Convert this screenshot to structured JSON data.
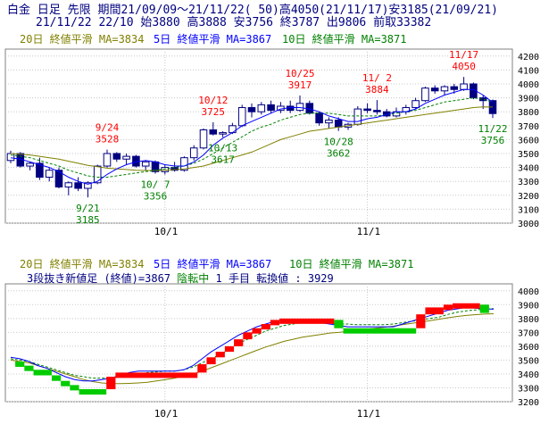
{
  "header": {
    "line1": "白金 日足 先限 期間21/09/09～21/11/22( 50)高4050(21/11/17)安3185(21/09/21)",
    "line2": "21/11/22 22/10 始3880 高3888 安3756 終3787 出9806 前取33382"
  },
  "colors": {
    "ma20": "#808000",
    "ma5": "#0000ff",
    "ma10": "#008000",
    "candle_down": "#000080",
    "candle_up_edge": "#000080",
    "high_label": "#ff0000",
    "low_label": "#008000",
    "brick_up": "#ff0000",
    "brick_down": "#00cc00",
    "grid": "#c8c8c8"
  },
  "chart_data": [
    {
      "type": "candlestick",
      "legend": {
        "ma20": "20日 終値平滑 MA=3834",
        "ma5": "5日 終値平滑 MA=3867",
        "ma10": "10日 終値平滑 MA=3871"
      },
      "ylim": [
        3000,
        4250
      ],
      "yticks": [
        3000,
        3100,
        3200,
        3300,
        3400,
        3500,
        3600,
        3700,
        3800,
        3900,
        4000,
        4100,
        4200
      ],
      "xtick_labels": [
        {
          "label": "10/1",
          "index": 16
        },
        {
          "label": "11/1",
          "index": 37
        }
      ],
      "ohlc": [
        [
          3450,
          3520,
          3430,
          3500
        ],
        [
          3500,
          3510,
          3400,
          3410
        ],
        [
          3410,
          3440,
          3380,
          3430
        ],
        [
          3430,
          3470,
          3310,
          3330
        ],
        [
          3330,
          3400,
          3300,
          3380
        ],
        [
          3380,
          3400,
          3250,
          3260
        ],
        [
          3260,
          3300,
          3200,
          3290
        ],
        [
          3290,
          3330,
          3230,
          3250
        ],
        [
          3250,
          3300,
          3185,
          3290
        ],
        [
          3290,
          3420,
          3280,
          3410
        ],
        [
          3410,
          3528,
          3400,
          3500
        ],
        [
          3500,
          3510,
          3440,
          3460
        ],
        [
          3460,
          3500,
          3420,
          3480
        ],
        [
          3480,
          3490,
          3400,
          3410
        ],
        [
          3410,
          3450,
          3380,
          3440
        ],
        [
          3440,
          3450,
          3356,
          3370
        ],
        [
          3370,
          3420,
          3350,
          3400
        ],
        [
          3400,
          3440,
          3370,
          3380
        ],
        [
          3380,
          3480,
          3370,
          3470
        ],
        [
          3470,
          3560,
          3450,
          3540
        ],
        [
          3540,
          3680,
          3530,
          3670
        ],
        [
          3670,
          3725,
          3630,
          3640
        ],
        [
          3640,
          3660,
          3617,
          3650
        ],
        [
          3650,
          3720,
          3640,
          3700
        ],
        [
          3700,
          3850,
          3690,
          3830
        ],
        [
          3830,
          3860,
          3760,
          3800
        ],
        [
          3800,
          3870,
          3780,
          3850
        ],
        [
          3850,
          3880,
          3790,
          3810
        ],
        [
          3810,
          3870,
          3790,
          3840
        ],
        [
          3840,
          3880,
          3790,
          3810
        ],
        [
          3810,
          3917,
          3800,
          3860
        ],
        [
          3860,
          3880,
          3780,
          3790
        ],
        [
          3790,
          3800,
          3700,
          3720
        ],
        [
          3720,
          3760,
          3680,
          3740
        ],
        [
          3740,
          3760,
          3662,
          3690
        ],
        [
          3690,
          3720,
          3670,
          3710
        ],
        [
          3710,
          3840,
          3700,
          3820
        ],
        [
          3820,
          3860,
          3790,
          3810
        ],
        [
          3810,
          3884,
          3780,
          3800
        ],
        [
          3800,
          3820,
          3760,
          3770
        ],
        [
          3770,
          3830,
          3760,
          3800
        ],
        [
          3800,
          3850,
          3780,
          3830
        ],
        [
          3830,
          3900,
          3820,
          3880
        ],
        [
          3880,
          3980,
          3870,
          3970
        ],
        [
          3970,
          3990,
          3930,
          3950
        ],
        [
          3950,
          3990,
          3920,
          3980
        ],
        [
          3980,
          4000,
          3930,
          3960
        ],
        [
          3960,
          4050,
          3950,
          4000
        ],
        [
          4000,
          4010,
          3890,
          3900
        ],
        [
          3900,
          3920,
          3820,
          3880
        ],
        [
          3880,
          3888,
          3756,
          3787
        ]
      ],
      "ma5": [
        3470,
        3460,
        3440,
        3420,
        3400,
        3370,
        3330,
        3300,
        3280,
        3300,
        3350,
        3390,
        3420,
        3440,
        3450,
        3440,
        3420,
        3410,
        3410,
        3440,
        3490,
        3560,
        3610,
        3650,
        3700,
        3730,
        3760,
        3790,
        3820,
        3830,
        3830,
        3820,
        3800,
        3770,
        3750,
        3730,
        3730,
        3750,
        3760,
        3780,
        3800,
        3800,
        3820,
        3860,
        3890,
        3920,
        3940,
        3960,
        3960,
        3920,
        3867
      ],
      "ma10": [
        3490,
        3480,
        3470,
        3450,
        3430,
        3410,
        3380,
        3360,
        3340,
        3330,
        3330,
        3340,
        3350,
        3360,
        3370,
        3380,
        3390,
        3400,
        3410,
        3430,
        3460,
        3500,
        3540,
        3580,
        3620,
        3660,
        3690,
        3710,
        3740,
        3760,
        3780,
        3790,
        3790,
        3790,
        3780,
        3770,
        3770,
        3770,
        3770,
        3780,
        3790,
        3800,
        3810,
        3830,
        3850,
        3870,
        3880,
        3890,
        3900,
        3890,
        3871
      ],
      "ma20": [
        3500,
        3495,
        3490,
        3480,
        3470,
        3460,
        3445,
        3430,
        3415,
        3405,
        3395,
        3390,
        3385,
        3380,
        3378,
        3378,
        3380,
        3385,
        3390,
        3400,
        3410,
        3430,
        3450,
        3470,
        3490,
        3510,
        3540,
        3570,
        3600,
        3620,
        3640,
        3660,
        3670,
        3680,
        3690,
        3700,
        3710,
        3720,
        3730,
        3740,
        3750,
        3760,
        3770,
        3780,
        3790,
        3800,
        3810,
        3820,
        3830,
        3835,
        3834
      ],
      "high_annotations": [
        {
          "date": "9/24",
          "value": "3528",
          "index": 10
        },
        {
          "date": "10/12",
          "value": "3725",
          "index": 21
        },
        {
          "date": "10/25",
          "value": "3917",
          "index": 30
        },
        {
          "date": "11/ 2",
          "value": "3884",
          "index": 38
        },
        {
          "date": "11/17",
          "value": "4050",
          "index": 47
        }
      ],
      "low_annotations": [
        {
          "date": "9/21",
          "value": "3185",
          "index": 8
        },
        {
          "date": "10/ 7",
          "value": "3356",
          "index": 15
        },
        {
          "date": "10/13",
          "value": "3617",
          "index": 22
        },
        {
          "date": "10/28",
          "value": "3662",
          "index": 34
        },
        {
          "date": "11/22",
          "value": "3756",
          "index": 50
        }
      ]
    },
    {
      "type": "three-line-break",
      "legend": {
        "ma20": "20日 終値平滑 MA=3834",
        "ma5": "5日 終値平滑 MA=3867",
        "ma10": "10日 終値平滑 MA=3871"
      },
      "info_prefix": "3段抜き新値足 (終値)=3867 ",
      "info_state": "陰転中",
      "info_suffix": "  1 手目 転換値 : 3929",
      "ylim": [
        3200,
        4050
      ],
      "yticks": [
        3200,
        3300,
        3400,
        3500,
        3600,
        3700,
        3800,
        3900,
        4000
      ],
      "bricks": [
        {
          "start": 1,
          "end": 2,
          "low": 3460,
          "high": 3490,
          "dir": "down"
        },
        {
          "start": 2,
          "end": 3,
          "low": 3430,
          "high": 3460,
          "dir": "down"
        },
        {
          "start": 3,
          "end": 5,
          "low": 3390,
          "high": 3430,
          "dir": "down"
        },
        {
          "start": 5,
          "end": 6,
          "low": 3350,
          "high": 3390,
          "dir": "down"
        },
        {
          "start": 6,
          "end": 7,
          "low": 3320,
          "high": 3350,
          "dir": "down"
        },
        {
          "start": 7,
          "end": 8,
          "low": 3290,
          "high": 3320,
          "dir": "down"
        },
        {
          "start": 8,
          "end": 11,
          "low": 3270,
          "high": 3290,
          "dir": "down"
        },
        {
          "start": 11,
          "end": 12,
          "low": 3290,
          "high": 3380,
          "dir": "up"
        },
        {
          "start": 12,
          "end": 21,
          "low": 3380,
          "high": 3410,
          "dir": "up"
        },
        {
          "start": 21,
          "end": 22,
          "low": 3410,
          "high": 3470,
          "dir": "up"
        },
        {
          "start": 22,
          "end": 23,
          "low": 3470,
          "high": 3520,
          "dir": "up"
        },
        {
          "start": 23,
          "end": 24,
          "low": 3520,
          "high": 3560,
          "dir": "up"
        },
        {
          "start": 24,
          "end": 25,
          "low": 3560,
          "high": 3600,
          "dir": "up"
        },
        {
          "start": 25,
          "end": 26,
          "low": 3600,
          "high": 3650,
          "dir": "up"
        },
        {
          "start": 26,
          "end": 27,
          "low": 3650,
          "high": 3700,
          "dir": "up"
        },
        {
          "start": 27,
          "end": 28,
          "low": 3700,
          "high": 3730,
          "dir": "up"
        },
        {
          "start": 28,
          "end": 29,
          "low": 3730,
          "high": 3760,
          "dir": "up"
        },
        {
          "start": 29,
          "end": 30,
          "low": 3760,
          "high": 3790,
          "dir": "up"
        },
        {
          "start": 30,
          "end": 36,
          "low": 3790,
          "high": 3800,
          "dir": "up"
        },
        {
          "start": 36,
          "end": 37,
          "low": 3730,
          "high": 3790,
          "dir": "down"
        },
        {
          "start": 37,
          "end": 45,
          "low": 3710,
          "high": 3730,
          "dir": "down"
        },
        {
          "start": 45,
          "end": 46,
          "low": 3730,
          "high": 3830,
          "dir": "up"
        },
        {
          "start": 46,
          "end": 48,
          "low": 3830,
          "high": 3880,
          "dir": "up"
        },
        {
          "start": 48,
          "end": 49,
          "low": 3880,
          "high": 3900,
          "dir": "up"
        },
        {
          "start": 49,
          "end": 52,
          "low": 3900,
          "high": 3910,
          "dir": "up"
        },
        {
          "start": 52,
          "end": 53,
          "low": 3840,
          "high": 3900,
          "dir": "down"
        }
      ],
      "ma5": [
        3520,
        3510,
        3490,
        3460,
        3440,
        3410,
        3380,
        3360,
        3350,
        3350,
        3360,
        3370,
        3390,
        3410,
        3420,
        3420,
        3420,
        3420,
        3420,
        3430,
        3460,
        3510,
        3560,
        3600,
        3640,
        3680,
        3710,
        3740,
        3760,
        3780,
        3790,
        3790,
        3790,
        3790,
        3770,
        3760,
        3750,
        3740,
        3740,
        3740,
        3740,
        3740,
        3740,
        3760,
        3780,
        3800,
        3820,
        3840,
        3860,
        3870,
        3880,
        3875,
        3870,
        3867
      ],
      "ma10": [
        3510,
        3500,
        3490,
        3470,
        3450,
        3430,
        3410,
        3390,
        3380,
        3370,
        3370,
        3370,
        3380,
        3390,
        3400,
        3410,
        3415,
        3420,
        3420,
        3430,
        3450,
        3480,
        3510,
        3540,
        3580,
        3620,
        3650,
        3680,
        3710,
        3730,
        3750,
        3760,
        3770,
        3770,
        3770,
        3765,
        3760,
        3760,
        3755,
        3755,
        3755,
        3755,
        3760,
        3770,
        3780,
        3790,
        3800,
        3810,
        3830,
        3845,
        3855,
        3862,
        3868,
        3871
      ],
      "ma20": [
        3500,
        3490,
        3480,
        3460,
        3440,
        3420,
        3400,
        3380,
        3360,
        3345,
        3335,
        3330,
        3330,
        3332,
        3335,
        3340,
        3350,
        3360,
        3370,
        3385,
        3400,
        3420,
        3445,
        3470,
        3495,
        3520,
        3545,
        3570,
        3595,
        3615,
        3635,
        3650,
        3665,
        3675,
        3685,
        3695,
        3700,
        3708,
        3715,
        3722,
        3730,
        3738,
        3745,
        3755,
        3765,
        3775,
        3785,
        3795,
        3805,
        3815,
        3822,
        3828,
        3832,
        3834
      ]
    }
  ]
}
